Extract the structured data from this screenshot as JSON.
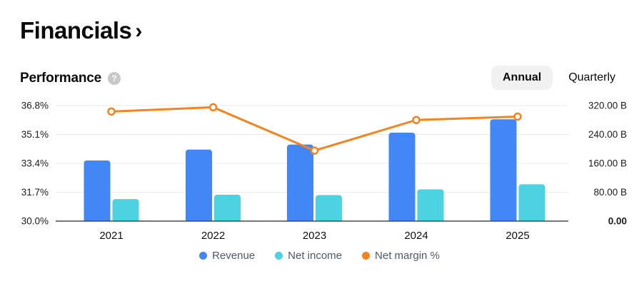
{
  "page": {
    "title": "Financials",
    "title_chevron": "›"
  },
  "performance": {
    "heading": "Performance",
    "help_glyph": "?"
  },
  "period_toggle": {
    "annual_label": "Annual",
    "quarterly_label": "Quarterly",
    "selected": "Annual"
  },
  "chart_data": {
    "type": "bar+line",
    "categories": [
      "2021",
      "2022",
      "2023",
      "2024",
      "2025"
    ],
    "series": [
      {
        "name": "Revenue",
        "type": "bar",
        "axis": "right",
        "unit": "B",
        "color": "#4287F5",
        "values": [
          168,
          198,
          212,
          245,
          282
        ]
      },
      {
        "name": "Net income",
        "type": "bar",
        "axis": "right",
        "unit": "B",
        "color": "#4DD2E1",
        "values": [
          61,
          73,
          72,
          88,
          102
        ]
      },
      {
        "name": "Net margin %",
        "type": "line",
        "axis": "left",
        "unit": "%",
        "color": "#F5831F",
        "values": [
          36.45,
          36.7,
          34.15,
          35.95,
          36.15
        ]
      }
    ],
    "left_axis": {
      "ticks": [
        "36.8%",
        "35.1%",
        "33.4%",
        "31.7%",
        "30.0%"
      ],
      "min": 30.0,
      "max": 36.8
    },
    "right_axis": {
      "ticks": [
        "320.00 B",
        "240.00 B",
        "160.00 B",
        "80.00 B",
        "0.00"
      ],
      "min": 0,
      "max": 320,
      "bold_tick": "0.00"
    },
    "grid": true,
    "legend_position": "bottom",
    "colors": {
      "grid": "#ebebeb",
      "axis_line": "#4a4a4a",
      "tick_text": "#1c1c1c",
      "x_label_text": "#101010"
    }
  }
}
